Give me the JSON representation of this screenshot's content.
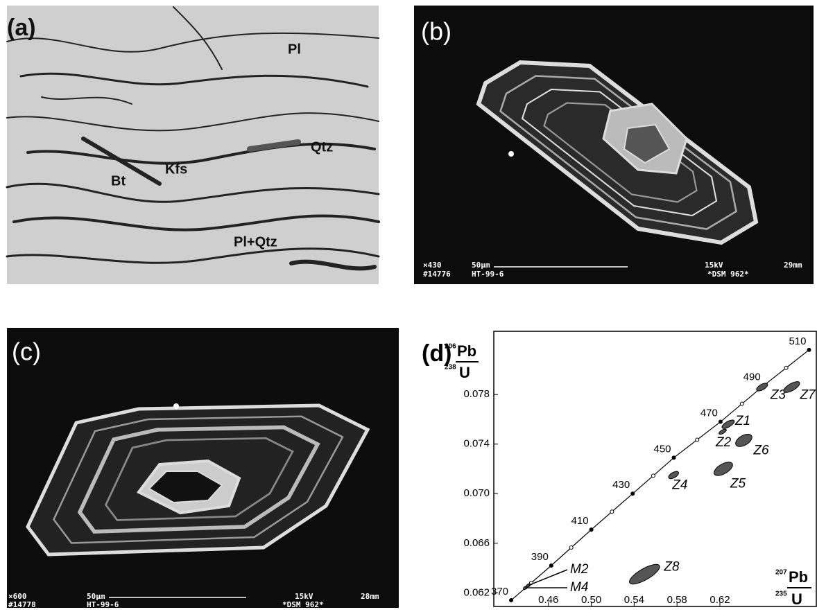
{
  "panels": [
    {
      "label": "(a)",
      "annotations": [
        "Pl",
        "Qtz",
        "Kfs",
        "Bt",
        "Pl+Qtz"
      ]
    },
    {
      "label": "(b)",
      "footer": [
        "×430",
        "#14776",
        "50μm",
        "HT-99-6",
        "15kV",
        "29mm",
        "*DSM 962*"
      ]
    },
    {
      "label": "(c)",
      "footer": [
        "×600",
        "#14778",
        "50μm",
        "HT-99-6",
        "15kV",
        "28mm",
        "*DSM 962*"
      ]
    }
  ],
  "chart_data": {
    "type": "concordia",
    "label": "(d)",
    "y_label": {
      "sup": "206",
      "num": "Pb",
      "sub": "238",
      "den": "U"
    },
    "x_label": {
      "sup": "207",
      "num": "Pb",
      "sub": "235",
      "den": "U"
    },
    "xlim": [
      0.409,
      0.71
    ],
    "ylim": [
      0.0609,
      0.0831
    ],
    "xticks": [
      0.46,
      {
        "value": 0.5,
        "label": "0.50"
      },
      0.54,
      0.58,
      0.62
    ],
    "yticks": [
      {
        "value": 0.062,
        "label": "0.062"
      },
      0.066,
      {
        "value": 0.07,
        "label": "0.070"
      },
      0.074,
      0.078
    ],
    "concordia": {
      "ages": [
        370,
        390,
        410,
        430,
        450,
        470,
        490,
        510
      ],
      "x": [
        0.4252,
        0.4626,
        0.5,
        0.5386,
        0.577,
        0.6206,
        0.6606,
        0.7032
      ],
      "y": [
        0.0614,
        0.0642,
        0.0671,
        0.07,
        0.0729,
        0.0758,
        0.0787,
        0.0816
      ]
    },
    "analyses": {
      "names": [
        "Z1",
        "Z2",
        "Z3",
        "Z4",
        "Z5",
        "Z6",
        "Z7",
        "Z8",
        "M2",
        "M4"
      ],
      "x": [
        0.6277,
        0.6226,
        0.6594,
        0.5768,
        0.6232,
        0.6423,
        0.687,
        0.5497,
        0.4413,
        0.4384
      ],
      "y": [
        0.0756,
        0.075,
        0.0786,
        0.0715,
        0.072,
        0.0743,
        0.0786,
        0.0635,
        0.0626,
        0.0624
      ],
      "x_err": [
        0.0065,
        0.0039,
        0.0058,
        0.0052,
        0.0097,
        0.0084,
        0.0084,
        0.016,
        0.002,
        0.002
      ],
      "y_err": [
        0.00022,
        0.00014,
        0.00022,
        0.00022,
        0.00039,
        0.00039,
        0.00028,
        0.00045,
        0.00011,
        0.00011
      ]
    }
  }
}
